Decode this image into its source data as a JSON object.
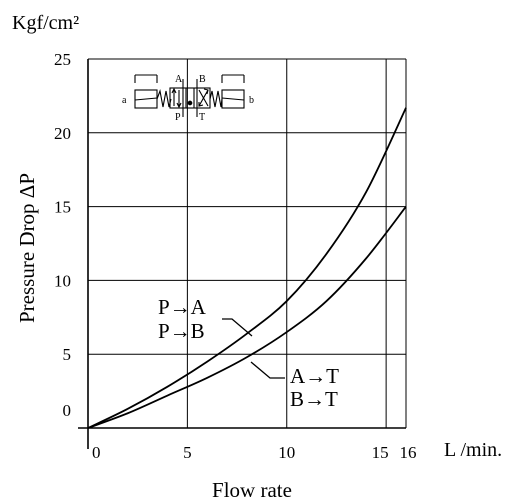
{
  "chart_data": {
    "type": "line",
    "y_unit_label": "Kgf/cm²",
    "ylabel": "Pressure Drop ΔP",
    "xlabel": "Flow rate",
    "x_unit_label": "L /min.",
    "xlim": [
      0,
      16
    ],
    "ylim": [
      0,
      25
    ],
    "x_ticks": [
      0,
      5,
      10,
      15,
      16
    ],
    "y_ticks": [
      0,
      5,
      10,
      15,
      20,
      25
    ],
    "grid": true,
    "series": [
      {
        "labels": [
          "P→A",
          "P→B"
        ],
        "x": [
          0,
          2,
          4,
          6,
          8,
          10,
          12,
          14,
          16
        ],
        "y": [
          0,
          1.3,
          2.8,
          4.5,
          6.4,
          8.6,
          11.8,
          16.0,
          21.7
        ]
      },
      {
        "labels": [
          "A→T",
          "B→T"
        ],
        "x": [
          0,
          2,
          4,
          6,
          8,
          10,
          12,
          14,
          16
        ],
        "y": [
          0,
          1.0,
          2.2,
          3.4,
          4.8,
          6.5,
          8.6,
          11.5,
          15.0
        ]
      }
    ],
    "symbol": {
      "port_top_left": "A",
      "port_top_right": "B",
      "port_bottom_left": "P",
      "port_bottom_right": "T",
      "side_left": "a",
      "side_right": "b"
    }
  }
}
